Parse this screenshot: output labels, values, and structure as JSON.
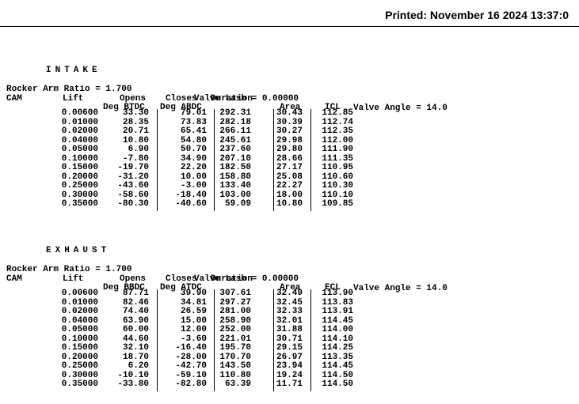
{
  "printed": "Printed: November 16 2024 13:37:0",
  "intake": {
    "title": "INTAKE",
    "ratio": "Rocker Arm Ratio = 1.700",
    "lash": "Valve Lash = 0.00000",
    "angle": "Valve Angle = 14.0",
    "headers": {
      "cam": "CAM",
      "lift": "Lift",
      "opens": "Opens",
      "opens2": "Deg BTDC",
      "closes": "Closes",
      "closes2": "Deg ABDC",
      "duration": "Duration",
      "area": "Area",
      "cl": "ICL"
    },
    "rows": [
      [
        "0.00600",
        "33.30",
        "79.01",
        "292.31",
        "30.43",
        "112.85"
      ],
      [
        "0.01000",
        "28.35",
        "73.83",
        "282.18",
        "30.39",
        "112.74"
      ],
      [
        "0.02000",
        "20.71",
        "65.41",
        "266.11",
        "30.27",
        "112.35"
      ],
      [
        "0.04000",
        "10.80",
        "54.80",
        "245.61",
        "29.98",
        "112.00"
      ],
      [
        "0.05000",
        "6.90",
        "50.70",
        "237.60",
        "29.80",
        "111.90"
      ],
      [
        "0.10000",
        "-7.80",
        "34.90",
        "207.10",
        "28.66",
        "111.35"
      ],
      [
        "0.15000",
        "-19.70",
        "22.20",
        "182.50",
        "27.17",
        "110.95"
      ],
      [
        "0.20000",
        "-31.20",
        "10.00",
        "158.80",
        "25.08",
        "110.60"
      ],
      [
        "0.25000",
        "-43.60",
        "-3.00",
        "133.40",
        "22.27",
        "110.30"
      ],
      [
        "0.30000",
        "-58.60",
        "-18.40",
        "103.00",
        "18.00",
        "110.10"
      ],
      [
        "0.35000",
        "-80.30",
        "-40.60",
        "59.09",
        "10.80",
        "109.85"
      ]
    ]
  },
  "exhaust": {
    "title": "EXHAUST",
    "ratio": "Rocker Arm Ratio = 1.700",
    "lash": "Valve Lash = 0.00000",
    "angle": "Valve Angle = 14.0",
    "headers": {
      "cam": "CAM",
      "lift": "Lift",
      "opens": "Opens",
      "opens2": "Deg BBDC",
      "closes": "Closes",
      "closes2": "Deg ATDC",
      "duration": "Duration",
      "area": "Area",
      "cl": "ECL"
    },
    "rows": [
      [
        "0.00600",
        "87.71",
        "39.90",
        "307.61",
        "32.49",
        "113.90"
      ],
      [
        "0.01000",
        "82.46",
        "34.81",
        "297.27",
        "32.45",
        "113.83"
      ],
      [
        "0.02000",
        "74.40",
        "26.59",
        "281.00",
        "32.33",
        "113.91"
      ],
      [
        "0.04000",
        "63.90",
        "15.00",
        "258.90",
        "32.01",
        "114.45"
      ],
      [
        "0.05000",
        "60.00",
        "12.00",
        "252.00",
        "31.88",
        "114.00"
      ],
      [
        "0.10000",
        "44.60",
        "-3.60",
        "221.01",
        "30.71",
        "114.10"
      ],
      [
        "0.15000",
        "32.10",
        "-16.40",
        "195.70",
        "29.15",
        "114.25"
      ],
      [
        "0.20000",
        "18.70",
        "-28.00",
        "170.70",
        "26.97",
        "113.35"
      ],
      [
        "0.25000",
        "6.20",
        "-42.70",
        "143.50",
        "23.94",
        "114.45"
      ],
      [
        "0.30000",
        "-10.10",
        "-59.10",
        "110.80",
        "19.24",
        "114.50"
      ],
      [
        "0.35000",
        "-33.80",
        "-82.80",
        "63.39",
        "11.71",
        "114.50"
      ]
    ]
  }
}
